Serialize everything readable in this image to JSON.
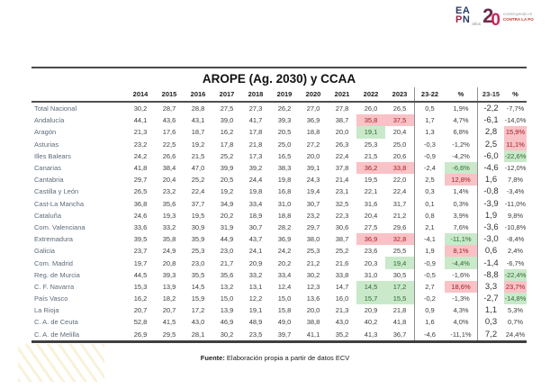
{
  "logo": {
    "line1": "EA",
    "line2_p": "P",
    "line2_n": "N",
    "anios": "años",
    "big2": "2",
    "big0": "0",
    "tagline1": "construyendo re",
    "tagline2": "CONTRA LA PO"
  },
  "footer": {
    "fuente_label": "Fuente:",
    "fuente_text": " Elaboración propia a partir de datos ECV"
  },
  "colors": {
    "highlight_red_bg": "#f9c2c6",
    "highlight_red_text": "#a02025",
    "highlight_green_bg": "#c9e9ca",
    "highlight_green_text": "#2e6b30",
    "row_label": "#5d6b79"
  },
  "chart_data": {
    "type": "table",
    "title": "AROPE (Ag. 2030) y CCAA",
    "columns": [
      "",
      "2014",
      "2015",
      "2016",
      "2017",
      "2018",
      "2019",
      "2020",
      "2021",
      "2022",
      "2023",
      "23-22",
      "%",
      "23-15",
      "%"
    ],
    "rows": [
      {
        "label": "Total Nacional",
        "cells": [
          "30,2",
          "28,7",
          "28,8",
          "27,5",
          "27,3",
          "26,2",
          "27,0",
          "27,8",
          "26,0",
          "26,5",
          "0,5",
          "1,9%",
          "-2,2",
          "-7,7%"
        ],
        "marks": {}
      },
      {
        "label": "Andalucía",
        "cells": [
          "44,1",
          "43,6",
          "43,1",
          "39,0",
          "41,7",
          "39,3",
          "36,9",
          "38,7",
          "35,8",
          "37,5",
          "1,7",
          "4,7%",
          "-6,1",
          "-14,0%"
        ],
        "marks": {
          "8": "red",
          "9": "red"
        }
      },
      {
        "label": "Aragón",
        "cells": [
          "21,3",
          "17,6",
          "18,7",
          "16,2",
          "17,8",
          "20,5",
          "18,8",
          "20,0",
          "19,1",
          "20,4",
          "1,3",
          "6,8%",
          "2,8",
          "15,9%"
        ],
        "marks": {
          "8": "green",
          "13": "red"
        }
      },
      {
        "label": "Asturias",
        "cells": [
          "23,2",
          "22,5",
          "19,2",
          "17,8",
          "21,8",
          "25,0",
          "27,2",
          "26,3",
          "25,3",
          "25,0",
          "-0,3",
          "-1,2%",
          "2,5",
          "11,1%"
        ],
        "marks": {
          "13": "red"
        }
      },
      {
        "label": "Illes Balears",
        "cells": [
          "24,2",
          "26,6",
          "21,5",
          "25,2",
          "17,3",
          "16,5",
          "20,0",
          "22,4",
          "21,5",
          "20,6",
          "-0,9",
          "-4,2%",
          "-6,0",
          "-22,6%"
        ],
        "marks": {
          "13": "green"
        }
      },
      {
        "label": "Canarias",
        "cells": [
          "41,8",
          "38,4",
          "47,0",
          "39,9",
          "39,2",
          "38,3",
          "39,1",
          "37,8",
          "36,2",
          "33,8",
          "-2,4",
          "-6,6%",
          "-4,6",
          "-12,0%"
        ],
        "marks": {
          "8": "red",
          "9": "red",
          "11": "green"
        }
      },
      {
        "label": "Cantabria",
        "cells": [
          "29,7",
          "20,4",
          "25,2",
          "20,5",
          "24,4",
          "19,8",
          "24,3",
          "21,4",
          "19,5",
          "22,0",
          "2,5",
          "12,8%",
          "1,6",
          "7,8%"
        ],
        "marks": {
          "11": "red"
        }
      },
      {
        "label": "Castilla y León",
        "cells": [
          "26,5",
          "23,2",
          "22,4",
          "19,2",
          "19,8",
          "16,8",
          "19,4",
          "23,1",
          "22,1",
          "22,4",
          "0,3",
          "1,4%",
          "-0,8",
          "-3,4%"
        ],
        "marks": {}
      },
      {
        "label": "Cast-La Mancha",
        "cells": [
          "36,8",
          "35,6",
          "37,7",
          "34,9",
          "33,4",
          "31,0",
          "30,7",
          "32,5",
          "31,6",
          "31,7",
          "0,1",
          "0,3%",
          "-3,9",
          "-11,0%"
        ],
        "marks": {}
      },
      {
        "label": "Cataluña",
        "cells": [
          "24,6",
          "19,3",
          "19,5",
          "20,2",
          "18,9",
          "18,8",
          "23,2",
          "22,3",
          "20,4",
          "21,2",
          "0,8",
          "3,9%",
          "1,9",
          "9,8%"
        ],
        "marks": {}
      },
      {
        "label": "Com. Valenciana",
        "cells": [
          "33,6",
          "33,2",
          "30,9",
          "31,9",
          "30,7",
          "28,2",
          "29,7",
          "30,6",
          "27,5",
          "29,6",
          "2,1",
          "7,6%",
          "-3,6",
          "-10,8%"
        ],
        "marks": {}
      },
      {
        "label": "Extremadura",
        "cells": [
          "39,5",
          "35,8",
          "35,9",
          "44,9",
          "43,7",
          "36,9",
          "38,0",
          "38,7",
          "36,9",
          "32,8",
          "-4,1",
          "-11,1%",
          "-3,0",
          "-8,4%"
        ],
        "marks": {
          "8": "red",
          "9": "red",
          "11": "green"
        }
      },
      {
        "label": "Galicia",
        "cells": [
          "23,7",
          "24,9",
          "25,3",
          "23,0",
          "24,1",
          "24,2",
          "25,3",
          "25,2",
          "23,6",
          "25,5",
          "1,9",
          "8,1%",
          "0,6",
          "2,4%"
        ],
        "marks": {
          "11": "red"
        }
      },
      {
        "label": "Com. Madrid",
        "cells": [
          "19,7",
          "20,8",
          "23,0",
          "21,7",
          "20,9",
          "20,2",
          "21,2",
          "21,6",
          "20,3",
          "19,4",
          "-0,9",
          "-4,4%",
          "-1,4",
          "-6,7%"
        ],
        "marks": {
          "9": "green",
          "11": "green"
        }
      },
      {
        "label": "Reg. de Murcia",
        "cells": [
          "44,5",
          "39,3",
          "35,5",
          "35,6",
          "33,2",
          "33,4",
          "30,2",
          "33,8",
          "31,0",
          "30,5",
          "-0,5",
          "-1,6%",
          "-8,8",
          "-22,4%"
        ],
        "marks": {
          "13": "green"
        }
      },
      {
        "label": "C. F. Navarra",
        "cells": [
          "15,3",
          "13,9",
          "14,5",
          "13,2",
          "13,1",
          "12,4",
          "12,3",
          "14,7",
          "14,5",
          "17,2",
          "2,7",
          "18,6%",
          "3,3",
          "23,7%"
        ],
        "marks": {
          "8": "green",
          "9": "green",
          "11": "red",
          "13": "red"
        }
      },
      {
        "label": "País Vasco",
        "cells": [
          "16,2",
          "18,2",
          "15,9",
          "15,0",
          "12,2",
          "15,0",
          "13,6",
          "16,0",
          "15,7",
          "15,5",
          "-0,2",
          "-1,3%",
          "-2,7",
          "-14,8%"
        ],
        "marks": {
          "8": "green",
          "9": "green",
          "13": "green"
        }
      },
      {
        "label": "La Rioja",
        "cells": [
          "20,7",
          "20,7",
          "17,2",
          "13,9",
          "19,1",
          "15,8",
          "20,0",
          "21,3",
          "20,9",
          "21,8",
          "0,9",
          "4,3%",
          "1,1",
          "5,3%"
        ],
        "marks": {}
      },
      {
        "label": "C. A. de Ceuta",
        "cells": [
          "52,8",
          "41,5",
          "43,0",
          "46,9",
          "48,9",
          "49,0",
          "38,8",
          "43,0",
          "40,2",
          "41,8",
          "1,6",
          "4,0%",
          "0,3",
          "0,7%"
        ],
        "marks": {}
      },
      {
        "label": "C. A. de Melilla",
        "cells": [
          "26,9",
          "29,5",
          "28,1",
          "30,2",
          "23,5",
          "39,7",
          "41,1",
          "35,2",
          "41,3",
          "36,7",
          "-4,6",
          "-11,1%",
          "7,2",
          "24,4%"
        ],
        "marks": {}
      }
    ]
  }
}
